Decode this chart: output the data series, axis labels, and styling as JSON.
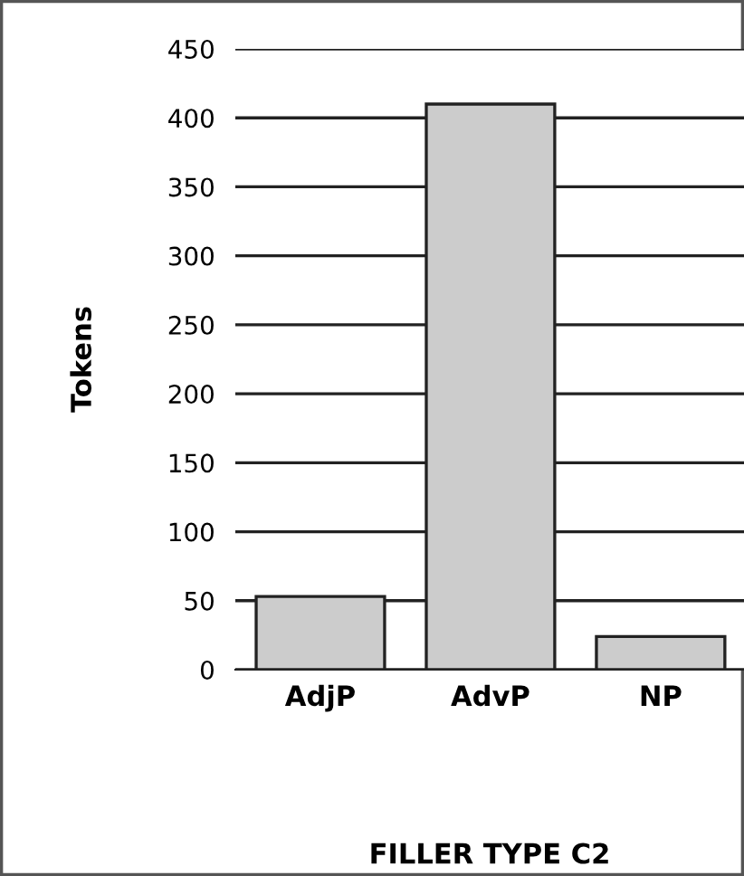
{
  "chart_data": {
    "type": "bar",
    "xlabel": "FILLER TYPE C2",
    "ylabel": "Tokens",
    "categories": [
      "AdjP",
      "AdvP",
      "NP"
    ],
    "values": [
      53,
      410,
      24
    ],
    "color": "#cccccc",
    "ylim": [
      0,
      450
    ],
    "yticks": [
      0,
      50,
      100,
      150,
      200,
      250,
      300,
      350,
      400,
      450
    ],
    "grid": "y"
  }
}
